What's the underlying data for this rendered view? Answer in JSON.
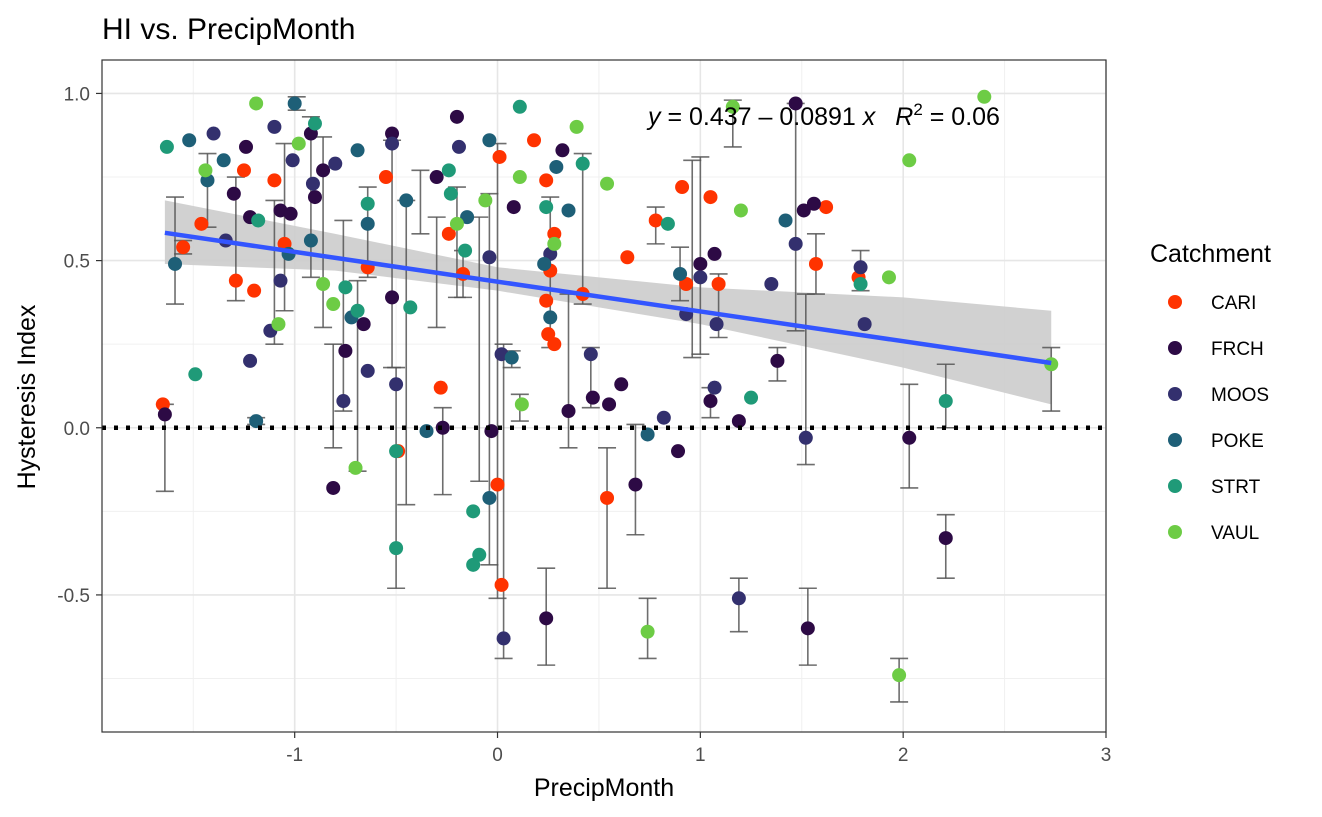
{
  "chart_data": {
    "type": "scatter",
    "title": "HI vs. PrecipMonth",
    "xlabel": "PrecipMonth",
    "ylabel": "Hysteresis Index",
    "xlim": [
      -1.95,
      3.0
    ],
    "ylim": [
      -0.91,
      1.1
    ],
    "xticks": [
      -1,
      0,
      1,
      2,
      3
    ],
    "xtick_labels": [
      "-1",
      "0",
      "1",
      "2",
      "3"
    ],
    "yticks": [
      -0.5,
      0.0,
      0.5,
      1.0
    ],
    "ytick_labels": [
      "-0.5",
      "0.0",
      "0.5",
      "1.0"
    ],
    "grid": true,
    "legend": {
      "title": "Catchment",
      "placement": "right",
      "entries": [
        "CARI",
        "FRCH",
        "MOOS",
        "POKE",
        "STRT",
        "VAUL"
      ]
    },
    "colors": {
      "CARI": "#ff3300",
      "FRCH": "#2d0a45",
      "MOOS": "#33306e",
      "POKE": "#1e5f77",
      "STRT": "#1f9a78",
      "VAUL": "#6dcc45",
      "regression": "#3355ff",
      "ribbon": "#cccccc",
      "errorbar": "#555555"
    },
    "reference_line": {
      "y": 0.0,
      "style": "dotted"
    },
    "regression": {
      "x_range": [
        -1.64,
        2.73
      ],
      "intercept": 0.437,
      "slope": -0.0891,
      "ribbon": [
        {
          "x": -1.64,
          "lo": 0.49,
          "hi": 0.68
        },
        {
          "x": -0.8,
          "lo": 0.47,
          "hi": 0.58
        },
        {
          "x": 0.0,
          "lo": 0.41,
          "hi": 0.48
        },
        {
          "x": 1.0,
          "lo": 0.31,
          "hi": 0.42
        },
        {
          "x": 2.0,
          "lo": 0.18,
          "hi": 0.39
        },
        {
          "x": 2.73,
          "lo": 0.07,
          "hi": 0.35
        }
      ],
      "equation": {
        "y": "y",
        "eq_mid": " = 0.437 – 0.0891 ",
        "x": "x",
        "r": "R",
        "sup": "2",
        "eq_end": " = 0.06"
      }
    },
    "series": [
      {
        "name": "CARI",
        "points": [
          [
            -1.65,
            0.07
          ],
          [
            -1.55,
            0.54
          ],
          [
            -1.46,
            0.61
          ],
          [
            -1.29,
            0.44
          ],
          [
            -1.25,
            0.77
          ],
          [
            -1.2,
            0.41
          ],
          [
            -1.1,
            0.74
          ],
          [
            -1.05,
            0.55
          ],
          [
            -0.64,
            0.48
          ],
          [
            -0.55,
            0.75
          ],
          [
            -0.49,
            -0.07
          ],
          [
            -0.28,
            0.12
          ],
          [
            -0.24,
            0.58
          ],
          [
            -0.17,
            0.46
          ],
          [
            0.01,
            0.81
          ],
          [
            0.0,
            -0.17
          ],
          [
            0.02,
            -0.47
          ],
          [
            0.18,
            0.86
          ],
          [
            0.24,
            0.74
          ],
          [
            0.24,
            0.38
          ],
          [
            0.25,
            0.28
          ],
          [
            0.26,
            0.47
          ],
          [
            0.28,
            0.58
          ],
          [
            0.28,
            0.25
          ],
          [
            0.42,
            0.4
          ],
          [
            0.54,
            -0.21
          ],
          [
            0.64,
            0.51
          ],
          [
            0.78,
            0.62
          ],
          [
            0.91,
            0.72
          ],
          [
            0.93,
            0.43
          ],
          [
            1.05,
            0.69
          ],
          [
            1.09,
            0.43
          ],
          [
            1.57,
            0.49
          ],
          [
            1.62,
            0.66
          ],
          [
            1.78,
            0.45
          ]
        ]
      },
      {
        "name": "FRCH",
        "points": [
          [
            -1.64,
            0.04
          ],
          [
            -1.3,
            0.7
          ],
          [
            -1.24,
            0.84
          ],
          [
            -1.22,
            0.63
          ],
          [
            -1.07,
            0.65
          ],
          [
            -1.02,
            0.64
          ],
          [
            -0.92,
            0.88
          ],
          [
            -0.9,
            0.69
          ],
          [
            -0.86,
            0.77
          ],
          [
            -0.81,
            -0.18
          ],
          [
            -0.75,
            0.23
          ],
          [
            -0.66,
            0.31
          ],
          [
            -0.52,
            0.39
          ],
          [
            -0.52,
            0.88
          ],
          [
            -0.3,
            0.75
          ],
          [
            -0.27,
            0.0
          ],
          [
            -0.2,
            0.93
          ],
          [
            -0.03,
            -0.01
          ],
          [
            0.08,
            0.66
          ],
          [
            0.24,
            -0.57
          ],
          [
            0.32,
            0.83
          ],
          [
            0.35,
            0.05
          ],
          [
            0.47,
            0.09
          ],
          [
            0.55,
            0.07
          ],
          [
            0.61,
            0.13
          ],
          [
            0.68,
            -0.17
          ],
          [
            0.89,
            -0.07
          ],
          [
            1.0,
            0.49
          ],
          [
            1.07,
            0.52
          ],
          [
            1.05,
            0.08
          ],
          [
            1.19,
            0.02
          ],
          [
            1.38,
            0.2
          ],
          [
            1.47,
            0.97
          ],
          [
            1.51,
            0.65
          ],
          [
            1.53,
            -0.6
          ],
          [
            1.56,
            0.67
          ],
          [
            2.03,
            -0.03
          ],
          [
            2.21,
            -0.33
          ]
        ]
      },
      {
        "name": "MOOS",
        "points": [
          [
            -1.4,
            0.88
          ],
          [
            -1.34,
            0.56
          ],
          [
            -1.22,
            0.2
          ],
          [
            -1.12,
            0.29
          ],
          [
            -1.1,
            0.9
          ],
          [
            -1.07,
            0.44
          ],
          [
            -1.01,
            0.8
          ],
          [
            -0.91,
            0.73
          ],
          [
            -0.8,
            0.79
          ],
          [
            -0.76,
            0.08
          ],
          [
            -0.64,
            0.17
          ],
          [
            -0.5,
            0.13
          ],
          [
            -0.52,
            0.85
          ],
          [
            -0.19,
            0.84
          ],
          [
            -0.04,
            0.51
          ],
          [
            0.02,
            0.22
          ],
          [
            0.03,
            -0.63
          ],
          [
            0.26,
            0.52
          ],
          [
            0.46,
            0.22
          ],
          [
            0.82,
            0.03
          ],
          [
            0.93,
            0.34
          ],
          [
            1.0,
            0.45
          ],
          [
            1.07,
            0.12
          ],
          [
            1.08,
            0.31
          ],
          [
            1.19,
            -0.51
          ],
          [
            1.35,
            0.43
          ],
          [
            1.47,
            0.55
          ],
          [
            1.52,
            -0.03
          ],
          [
            1.79,
            0.48
          ],
          [
            1.81,
            0.31
          ]
        ]
      },
      {
        "name": "POKE",
        "points": [
          [
            -1.59,
            0.49
          ],
          [
            -1.52,
            0.86
          ],
          [
            -1.43,
            0.74
          ],
          [
            -1.35,
            0.8
          ],
          [
            -1.19,
            0.02
          ],
          [
            -1.0,
            0.97
          ],
          [
            -1.03,
            0.52
          ],
          [
            -0.92,
            0.56
          ],
          [
            -0.72,
            0.33
          ],
          [
            -0.69,
            0.83
          ],
          [
            -0.64,
            0.61
          ],
          [
            -0.45,
            0.68
          ],
          [
            -0.35,
            -0.01
          ],
          [
            -0.15,
            0.63
          ],
          [
            -0.04,
            0.86
          ],
          [
            -0.04,
            -0.21
          ],
          [
            0.07,
            0.21
          ],
          [
            0.23,
            0.49
          ],
          [
            0.26,
            0.33
          ],
          [
            0.29,
            0.78
          ],
          [
            0.35,
            0.65
          ],
          [
            0.74,
            -0.02
          ],
          [
            0.9,
            0.46
          ],
          [
            1.42,
            0.62
          ]
        ]
      },
      {
        "name": "STRT",
        "points": [
          [
            -1.63,
            0.84
          ],
          [
            -1.49,
            0.16
          ],
          [
            -1.18,
            0.62
          ],
          [
            -0.9,
            0.91
          ],
          [
            -0.75,
            0.42
          ],
          [
            -0.69,
            0.35
          ],
          [
            -0.64,
            0.67
          ],
          [
            -0.5,
            -0.07
          ],
          [
            -0.5,
            -0.36
          ],
          [
            -0.43,
            0.36
          ],
          [
            -0.24,
            0.77
          ],
          [
            -0.23,
            0.7
          ],
          [
            -0.16,
            0.53
          ],
          [
            -0.12,
            -0.25
          ],
          [
            -0.12,
            -0.41
          ],
          [
            -0.09,
            -0.38
          ],
          [
            0.11,
            0.96
          ],
          [
            0.24,
            0.66
          ],
          [
            0.42,
            0.79
          ],
          [
            0.84,
            0.61
          ],
          [
            1.25,
            0.09
          ],
          [
            1.79,
            0.43
          ],
          [
            2.21,
            0.08
          ]
        ]
      },
      {
        "name": "VAUL",
        "points": [
          [
            -1.44,
            0.77
          ],
          [
            -1.19,
            0.97
          ],
          [
            -1.08,
            0.31
          ],
          [
            -0.98,
            0.85
          ],
          [
            -0.86,
            0.43
          ],
          [
            -0.81,
            0.37
          ],
          [
            -0.7,
            -0.12
          ],
          [
            -0.2,
            0.61
          ],
          [
            -0.06,
            0.68
          ],
          [
            0.11,
            0.75
          ],
          [
            0.12,
            0.07
          ],
          [
            0.28,
            0.55
          ],
          [
            0.39,
            0.9
          ],
          [
            0.54,
            0.73
          ],
          [
            0.74,
            -0.61
          ],
          [
            1.16,
            0.96
          ],
          [
            1.2,
            0.65
          ],
          [
            1.93,
            0.45
          ],
          [
            1.98,
            -0.74
          ],
          [
            2.03,
            0.8
          ],
          [
            2.4,
            0.99
          ],
          [
            2.73,
            0.19
          ]
        ]
      }
    ],
    "error_bars": [
      [
        -1.64,
        -0.19,
        0.07
      ],
      [
        -1.59,
        0.37,
        0.69
      ],
      [
        -1.55,
        0.52,
        0.56
      ],
      [
        -1.43,
        0.6,
        0.82
      ],
      [
        -1.29,
        0.38,
        0.75
      ],
      [
        -1.19,
        0.01,
        0.03
      ],
      [
        -1.1,
        0.25,
        0.68
      ],
      [
        -1.05,
        0.35,
        0.85
      ],
      [
        -0.99,
        0.95,
        0.99
      ],
      [
        -0.92,
        0.45,
        0.93
      ],
      [
        -0.86,
        0.3,
        0.87
      ],
      [
        -0.81,
        -0.06,
        0.25
      ],
      [
        -0.76,
        0.05,
        0.62
      ],
      [
        -0.69,
        -0.13,
        0.44
      ],
      [
        -0.64,
        0.45,
        0.72
      ],
      [
        -0.52,
        0.18,
        0.86
      ],
      [
        -0.5,
        -0.48,
        0.18
      ],
      [
        -0.45,
        -0.23,
        0.68
      ],
      [
        -0.38,
        0.58,
        0.77
      ],
      [
        -0.3,
        0.3,
        0.63
      ],
      [
        -0.27,
        -0.2,
        0.06
      ],
      [
        -0.2,
        0.39,
        0.72
      ],
      [
        -0.17,
        0.39,
        0.53
      ],
      [
        -0.09,
        -0.16,
        0.63
      ],
      [
        -0.04,
        -0.41,
        0.7
      ],
      [
        0.0,
        -0.51,
        0.85
      ],
      [
        0.03,
        -0.69,
        0.25
      ],
      [
        0.07,
        0.18,
        0.23
      ],
      [
        0.11,
        0.02,
        0.1
      ],
      [
        0.24,
        -0.71,
        -0.42
      ],
      [
        0.26,
        0.24,
        0.69
      ],
      [
        0.35,
        -0.06,
        0.4
      ],
      [
        0.42,
        0.37,
        0.82
      ],
      [
        0.46,
        0.06,
        0.24
      ],
      [
        0.54,
        -0.48,
        -0.06
      ],
      [
        0.68,
        -0.32,
        0.01
      ],
      [
        0.74,
        -0.69,
        -0.51
      ],
      [
        0.78,
        0.55,
        0.66
      ],
      [
        0.9,
        0.38,
        0.54
      ],
      [
        0.96,
        0.21,
        0.8
      ],
      [
        1.0,
        0.22,
        0.81
      ],
      [
        1.05,
        0.03,
        0.12
      ],
      [
        1.09,
        0.27,
        0.46
      ],
      [
        1.16,
        0.84,
        0.98
      ],
      [
        1.19,
        -0.61,
        -0.45
      ],
      [
        1.38,
        0.14,
        0.24
      ],
      [
        1.47,
        0.29,
        0.97
      ],
      [
        1.52,
        -0.11,
        0.4
      ],
      [
        1.53,
        -0.71,
        -0.48
      ],
      [
        1.57,
        0.4,
        0.58
      ],
      [
        1.79,
        0.41,
        0.53
      ],
      [
        1.98,
        -0.82,
        -0.69
      ],
      [
        2.03,
        -0.18,
        0.13
      ],
      [
        2.21,
        -0.45,
        -0.26
      ],
      [
        2.21,
        0.0,
        0.19
      ],
      [
        2.73,
        0.05,
        0.24
      ]
    ]
  }
}
